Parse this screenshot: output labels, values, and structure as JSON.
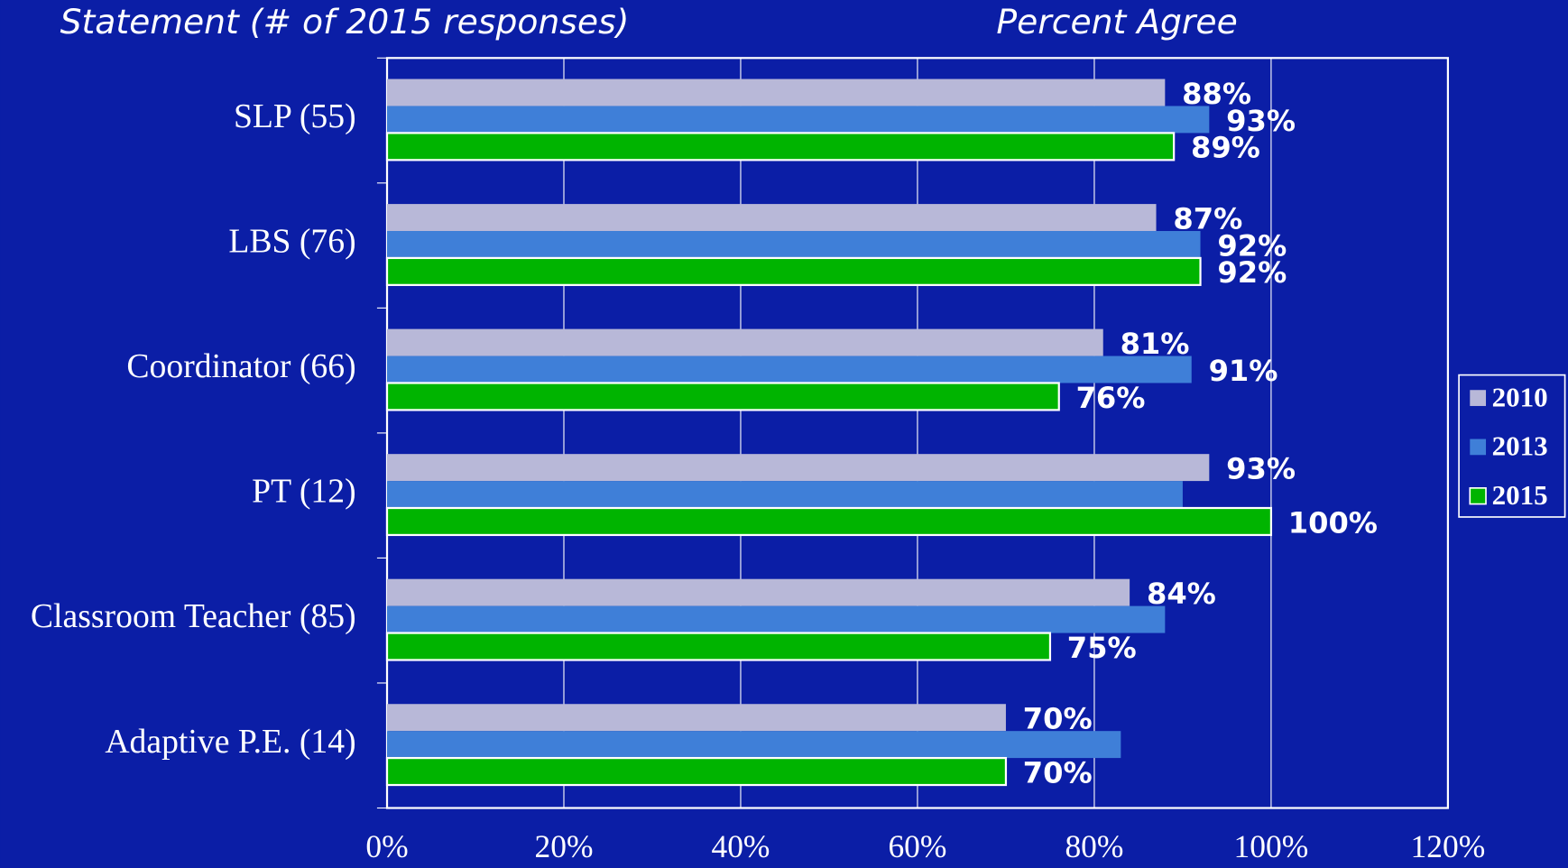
{
  "chart_data": {
    "type": "bar",
    "orientation": "horizontal",
    "title": "Percent Agree",
    "y_label": "Statement (# of 2015 responses)",
    "categories": [
      "SLP (55)",
      "LBS (76)",
      "Coordinator (66)",
      "PT (12)",
      "Classroom Teacher (85)",
      "Adaptive P.E. (14)"
    ],
    "series": [
      {
        "name": "2010",
        "color": "#b8b8d8",
        "values": [
          88,
          87,
          81,
          93,
          84,
          70
        ],
        "value_labels": [
          "88%",
          "87%",
          "81%",
          "93%",
          "84%",
          "70%"
        ]
      },
      {
        "name": "2013",
        "color": "#3f7fd8",
        "values": [
          93,
          92,
          91,
          90,
          88,
          83
        ],
        "value_labels": [
          "93%",
          "92%",
          "91%",
          null,
          null,
          null
        ]
      },
      {
        "name": "2015",
        "color": "#00b400",
        "values": [
          89,
          92,
          76,
          100,
          75,
          70
        ],
        "value_labels": [
          "89%",
          "92%",
          "76%",
          "100%",
          "75%",
          "70%"
        ]
      }
    ],
    "xlim": [
      0,
      120
    ],
    "xticks": [
      {
        "value": 0,
        "label": "0%"
      },
      {
        "value": 20,
        "label": "20%"
      },
      {
        "value": 40,
        "label": "40%"
      },
      {
        "value": 60,
        "label": "60%"
      },
      {
        "value": 80,
        "label": "80%"
      },
      {
        "value": 100,
        "label": "100%"
      },
      {
        "value": 120,
        "label": "120%"
      }
    ],
    "grid": true,
    "legend": "right"
  }
}
